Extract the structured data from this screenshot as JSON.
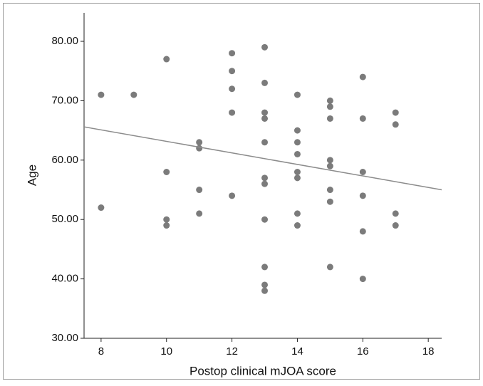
{
  "chart_data": {
    "type": "scatter",
    "x_label": "Postop clinical mJOA score",
    "y_label": "Age",
    "x": [
      8,
      8,
      9,
      10,
      10,
      10,
      10,
      11,
      11,
      11,
      11,
      12,
      12,
      12,
      12,
      12,
      13,
      13,
      13,
      13,
      13,
      13,
      13,
      13,
      13,
      13,
      13,
      14,
      14,
      14,
      14,
      14,
      14,
      14,
      14,
      15,
      15,
      15,
      15,
      15,
      15,
      15,
      15,
      16,
      16,
      16,
      16,
      16,
      16,
      17,
      17,
      17,
      17
    ],
    "values": [
      71,
      52,
      71,
      77,
      58,
      50,
      49,
      63,
      62,
      55,
      51,
      78,
      75,
      72,
      68,
      54,
      79,
      73,
      68,
      67,
      63,
      57,
      56,
      50,
      42,
      39,
      38,
      71,
      65,
      63,
      61,
      58,
      57,
      51,
      49,
      70,
      69,
      67,
      60,
      59,
      55,
      53,
      42,
      74,
      67,
      58,
      54,
      48,
      40,
      68,
      66,
      51,
      49
    ],
    "color": "#7b7b7b",
    "trend_line": {
      "x": [
        7.48,
        18.41
      ],
      "y": [
        65.6,
        55.0
      ],
      "color": "#8c8c8c"
    },
    "xlim": [
      7.48,
      18.41
    ],
    "ylim": [
      30,
      84.8
    ],
    "xticks": [
      8,
      10,
      12,
      14,
      16,
      18
    ],
    "yticks": [
      {
        "value": 30,
        "label": "30.00"
      },
      {
        "value": 40,
        "label": "40.00"
      },
      {
        "value": 50,
        "label": "50.00"
      },
      {
        "value": 60,
        "label": "60.00"
      },
      {
        "value": 70,
        "label": "70.00"
      },
      {
        "value": 80,
        "label": "80.00"
      }
    ]
  }
}
